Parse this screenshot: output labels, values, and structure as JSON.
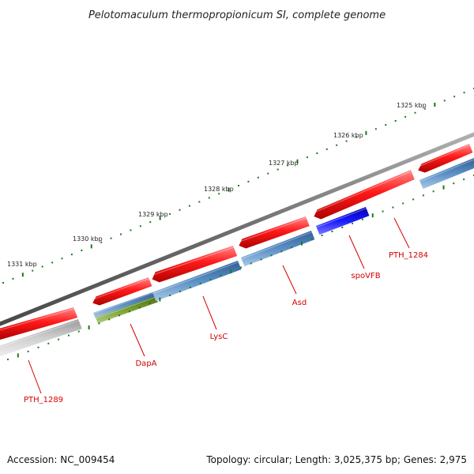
{
  "title": "Pelotomaculum thermopropionicum SI, complete genome",
  "accession": "Accession: NC_009454",
  "topology": "Topology: circular; Length: 3,025,375 bp; Genes: 2,975",
  "kbp_labels": [
    "1325 kbp",
    "1326 kbp",
    "1327 kbp",
    "1328 kbp",
    "1329 kbp",
    "1330 kbp",
    "1331 kbp"
  ],
  "gene_labels": [
    "PTH_1289",
    "DapA",
    "LysC",
    "Asd",
    "spoVFB",
    "PTH_1284"
  ],
  "colors": {
    "backbone": "#7a7a7a",
    "gene_red": "#ee1111",
    "cds_blue": "#4a80b8",
    "cds_bright_blue": "#1010e0",
    "cds_olive": "#6a8e26",
    "cds_grey": "#b8b8b8",
    "tick_green": "#1a7a1a",
    "label_red": "#d40000"
  }
}
